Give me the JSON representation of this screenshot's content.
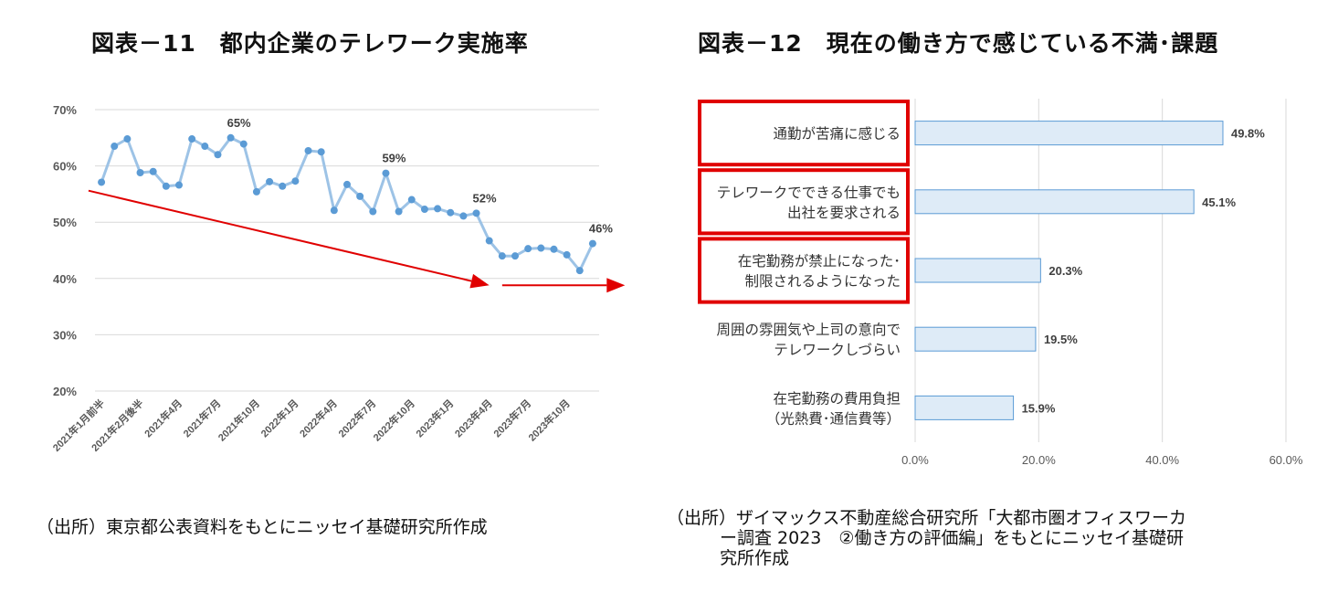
{
  "charts": [
    {
      "title": "図表－11　都内企業のテレワーク実施率",
      "source": "（出所）東京都公表資料をもとにニッセイ基礎研究所作成",
      "chart_data": {
        "type": "line",
        "title": "図表－11　都内企業のテレワーク実施率",
        "y_ticks": [
          "20%",
          "30%",
          "40%",
          "50%",
          "60%",
          "70%"
        ],
        "ylim": [
          20,
          70
        ],
        "grid": true,
        "x_tick_labels": [
          "2021年1月前半",
          "2021年2月後半",
          "2021年4月",
          "2021年7月",
          "2021年10月",
          "2022年1月",
          "2022年4月",
          "2022年7月",
          "2022年10月",
          "2023年1月",
          "2023年4月",
          "2023年7月",
          "2023年10月"
        ],
        "x_tick_indices": [
          0,
          3,
          6,
          9,
          12,
          15,
          18,
          21,
          24,
          27,
          30,
          33,
          36
        ],
        "series": [
          {
            "color": "#9dc3e6",
            "marker_color": "#5b9bd5",
            "values": [
              57.1,
              63.5,
              64.8,
              58.8,
              59.0,
              56.4,
              56.6,
              64.8,
              63.5,
              62.0,
              65.0,
              63.9,
              55.4,
              57.2,
              56.4,
              57.3,
              62.7,
              62.5,
              52.1,
              56.7,
              54.6,
              51.9,
              58.7,
              51.9,
              54.0,
              52.3,
              52.4,
              51.7,
              51.1,
              51.6,
              46.7,
              44.0,
              44.0,
              45.3,
              45.4,
              45.2,
              44.2,
              41.4,
              46.2
            ]
          }
        ],
        "data_labels": [
          {
            "index": 10,
            "text": "65%"
          },
          {
            "index": 22,
            "text": "59%"
          },
          {
            "index": 29,
            "text": "52%"
          },
          {
            "index": 38,
            "text": "46%"
          }
        ],
        "annotations": [
          {
            "type": "arrow",
            "color": "#e00000",
            "from": {
              "x": -1.0,
              "y": 55.6
            },
            "to": {
              "x": 30.0,
              "y": 38.8
            }
          },
          {
            "type": "arrow",
            "color": "#e00000",
            "from": {
              "x": 31.0,
              "y": 38.8
            },
            "to": {
              "x": 40.5,
              "y": 38.8
            }
          }
        ]
      }
    },
    {
      "title": "図表－12　現在の働き方で感じている不満･課題",
      "source_lines": [
        "（出所）ザイマックス不動産総合研究所「大都市圏オフィスワーカ",
        "ー調査 2023　②働き方の評価編」をもとにニッセイ基礎研",
        "究所作成"
      ],
      "chart_data": {
        "type": "bar",
        "orientation": "horizontal",
        "title": "図表－12　現在の働き方で感じている不満･課題",
        "categories": [
          [
            "通勤が苦痛に感じる"
          ],
          [
            "テレワークでできる仕事でも",
            "出社を要求される"
          ],
          [
            "在宅勤務が禁止になった･",
            "制限されるようになった"
          ],
          [
            "周囲の雰囲気や上司の意向で",
            "テレワークしづらい"
          ],
          [
            "在宅勤務の費用負担",
            "（光熱費･通信費等）"
          ]
        ],
        "values": [
          49.8,
          45.1,
          20.3,
          19.5,
          15.9
        ],
        "value_labels": [
          "49.8%",
          "45.1%",
          "20.3%",
          "19.5%",
          "15.9%"
        ],
        "x_ticks": [
          "0.0%",
          "20.0%",
          "40.0%",
          "60.0%"
        ],
        "xlim": [
          0,
          60
        ],
        "grid": true,
        "bar_fill": "#deebf7",
        "bar_stroke": "#5b9bd5",
        "highlight_color": "#e00000",
        "highlighted_indices": [
          0,
          1,
          2
        ]
      }
    }
  ]
}
